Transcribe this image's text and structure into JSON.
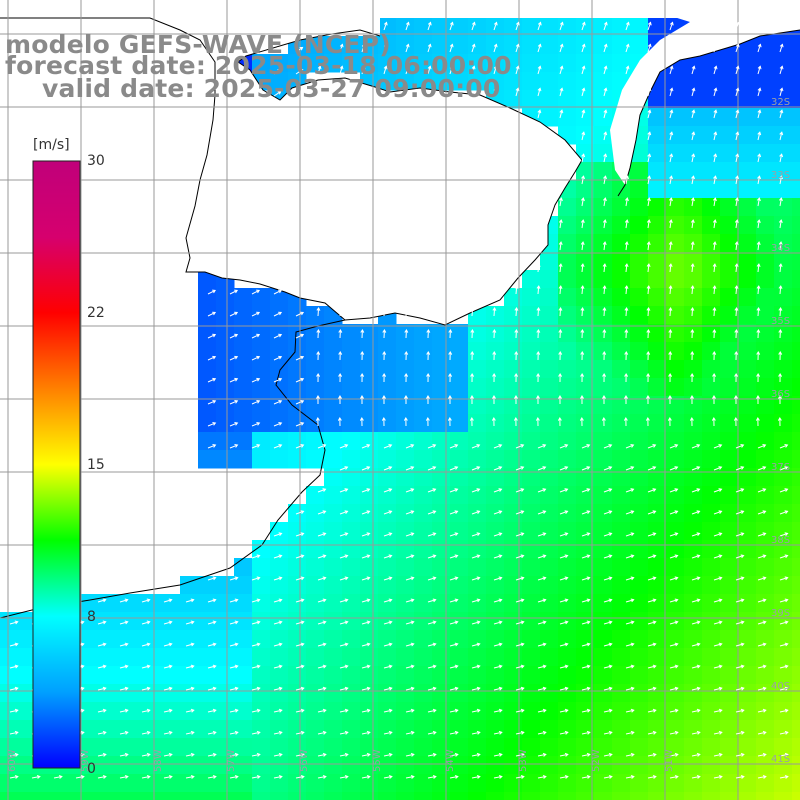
{
  "map": {
    "title_line1": "modelo GEFS-WAVE (NCEP)",
    "title_line2": "forecast date: 2025-03-18 06:00:00",
    "title_line3": "valid date: 2025-03-27 09:00:00"
  },
  "colorbar": {
    "unit_label": "[m/s]",
    "min": 0,
    "max": 30,
    "tick_values": [
      "30",
      "22",
      "15",
      "8",
      "0"
    ],
    "colors": [
      "#0000ff",
      "#00a0ff",
      "#00ffff",
      "#00ff00",
      "#ffff00",
      "#ff8000",
      "#ff0000",
      "#d6006e",
      "#c0007a"
    ]
  },
  "axes": {
    "lat_labels": [
      "32S",
      "33S",
      "34S",
      "35S",
      "36S",
      "37S",
      "38S",
      "39S",
      "40S",
      "41S"
    ],
    "lon_labels": [
      "60W",
      "59W",
      "58W",
      "57W",
      "56W",
      "55W",
      "54W",
      "53W",
      "52W",
      "51W"
    ]
  },
  "field_colors": {
    "ocean_fallback": "#7ff7e0",
    "land": "#ffffff",
    "coastline": "#000000",
    "grid": "#999999",
    "arrows": "#ffffff"
  }
}
